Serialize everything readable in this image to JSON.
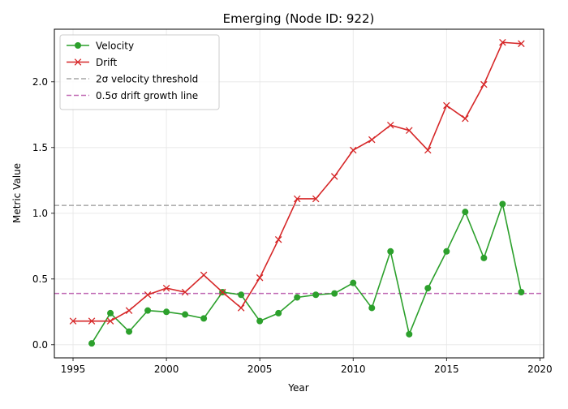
{
  "chart_data": {
    "type": "line",
    "title": "Emerging (Node ID: 922)",
    "xlabel": "Year",
    "ylabel": "Metric Value",
    "xlim": [
      1994,
      2020.2
    ],
    "ylim": [
      -0.1,
      2.4
    ],
    "x_ticks": [
      1995,
      2000,
      2005,
      2010,
      2015,
      2020
    ],
    "y_ticks": [
      0.0,
      0.5,
      1.0,
      1.5,
      2.0
    ],
    "y_tick_labels": [
      "0.0",
      "0.5",
      "1.0",
      "1.5",
      "2.0"
    ],
    "grid": true,
    "legend_position": "top-left",
    "series": [
      {
        "name": "Velocity",
        "color": "#2ca02c",
        "marker": "circle",
        "x": [
          1996,
          1997,
          1998,
          1999,
          2000,
          2001,
          2002,
          2003,
          2004,
          2005,
          2006,
          2007,
          2008,
          2009,
          2010,
          2011,
          2012,
          2013,
          2014,
          2015,
          2016,
          2017,
          2018,
          2019
        ],
        "values": [
          0.01,
          0.24,
          0.1,
          0.26,
          0.25,
          0.23,
          0.2,
          0.4,
          0.38,
          0.18,
          0.24,
          0.36,
          0.38,
          0.39,
          0.47,
          0.28,
          0.71,
          0.08,
          0.43,
          0.71,
          1.01,
          0.66,
          1.07,
          0.4
        ]
      },
      {
        "name": "Drift",
        "color": "#d62728",
        "marker": "x",
        "x": [
          1995,
          1996,
          1997,
          1998,
          1999,
          2000,
          2001,
          2002,
          2003,
          2004,
          2005,
          2006,
          2007,
          2008,
          2009,
          2010,
          2011,
          2012,
          2013,
          2014,
          2015,
          2016,
          2017,
          2018,
          2019
        ],
        "values": [
          0.18,
          0.18,
          0.18,
          0.26,
          0.38,
          0.43,
          0.4,
          0.53,
          0.4,
          0.28,
          0.51,
          0.8,
          1.11,
          1.11,
          1.28,
          1.48,
          1.56,
          1.67,
          1.63,
          1.48,
          1.82,
          1.72,
          1.98,
          2.3,
          2.29
        ]
      }
    ],
    "reference_lines": [
      {
        "name": "2σ velocity threshold",
        "y": 1.06,
        "color": "#a6a6a6"
      },
      {
        "name": "0.5σ drift growth line",
        "y": 0.39,
        "color": "#c06ab4"
      }
    ]
  }
}
